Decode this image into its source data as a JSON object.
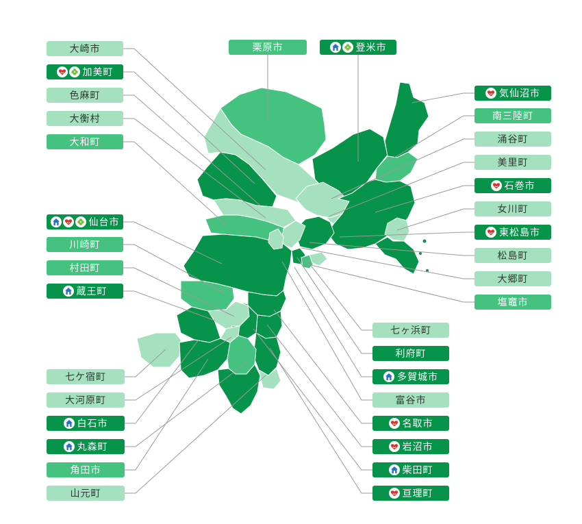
{
  "colors": {
    "light": "#a6e1bf",
    "medium": "#45c27f",
    "dark": "#08934b",
    "leader_line": "#9a9a9a",
    "icon_house": "#2a6fc9",
    "icon_heart": "#d9352b",
    "icon_clover": "#7cc142"
  },
  "municipalities": [
    {
      "id": "osaki",
      "label": "大崎市",
      "tone": "t1",
      "icons": []
    },
    {
      "id": "kami",
      "label": "加美町",
      "tone": "t3",
      "icons": [
        "heart-icon",
        "clover-icon"
      ]
    },
    {
      "id": "shikama",
      "label": "色麻町",
      "tone": "t1",
      "icons": []
    },
    {
      "id": "taihira",
      "label": "大衡村",
      "tone": "t1",
      "icons": []
    },
    {
      "id": "taiwa",
      "label": "大和町",
      "tone": "t2",
      "icons": []
    },
    {
      "id": "kurihara",
      "label": "栗原市",
      "tone": "t2",
      "icons": []
    },
    {
      "id": "tome",
      "label": "登米市",
      "tone": "t3",
      "icons": [
        "house-icon",
        "clover-icon"
      ]
    },
    {
      "id": "kesennuma",
      "label": "気仙沼市",
      "tone": "t3",
      "icons": [
        "heart-icon"
      ]
    },
    {
      "id": "minamisanriku",
      "label": "南三陸町",
      "tone": "t2",
      "icons": []
    },
    {
      "id": "wakuya",
      "label": "涌谷町",
      "tone": "t1",
      "icons": []
    },
    {
      "id": "misato",
      "label": "美里町",
      "tone": "t1",
      "icons": []
    },
    {
      "id": "ishinomaki",
      "label": "石巻市",
      "tone": "t3",
      "icons": [
        "heart-icon"
      ]
    },
    {
      "id": "onagawa",
      "label": "女川町",
      "tone": "t1",
      "icons": []
    },
    {
      "id": "higashimatsushima",
      "label": "東松島市",
      "tone": "t3",
      "icons": [
        "heart-icon"
      ]
    },
    {
      "id": "matsushima",
      "label": "松島町",
      "tone": "t1",
      "icons": []
    },
    {
      "id": "osato",
      "label": "大郷町",
      "tone": "t1",
      "icons": []
    },
    {
      "id": "shiogama",
      "label": "塩竈市",
      "tone": "t2",
      "icons": []
    },
    {
      "id": "sendai",
      "label": "仙台市",
      "tone": "t3",
      "icons": [
        "house-icon",
        "heart-icon",
        "clover-icon"
      ]
    },
    {
      "id": "kawasaki",
      "label": "川崎町",
      "tone": "t2",
      "icons": []
    },
    {
      "id": "murata",
      "label": "村田町",
      "tone": "t2",
      "icons": []
    },
    {
      "id": "zao",
      "label": "蔵王町",
      "tone": "t3",
      "icons": [
        "house-icon"
      ]
    },
    {
      "id": "shichikashuku",
      "label": "七ケ宿町",
      "tone": "t1",
      "icons": []
    },
    {
      "id": "ogawara",
      "label": "大河原町",
      "tone": "t1",
      "icons": []
    },
    {
      "id": "shiroishi",
      "label": "白石市",
      "tone": "t3",
      "icons": [
        "house-icon"
      ]
    },
    {
      "id": "marumori",
      "label": "丸森町",
      "tone": "t3",
      "icons": [
        "house-icon"
      ]
    },
    {
      "id": "kakuda",
      "label": "角田市",
      "tone": "t2",
      "icons": []
    },
    {
      "id": "yamamoto",
      "label": "山元町",
      "tone": "t1",
      "icons": []
    },
    {
      "id": "shichigahama",
      "label": "七ヶ浜町",
      "tone": "t1",
      "icons": []
    },
    {
      "id": "rifu",
      "label": "利府町",
      "tone": "t3",
      "icons": []
    },
    {
      "id": "tagajo",
      "label": "多賀城市",
      "tone": "t3",
      "icons": [
        "house-icon"
      ]
    },
    {
      "id": "tomiya",
      "label": "富谷市",
      "tone": "t1",
      "icons": []
    },
    {
      "id": "natori",
      "label": "名取市",
      "tone": "t3",
      "icons": [
        "heart-icon"
      ]
    },
    {
      "id": "iwanuma",
      "label": "岩沼市",
      "tone": "t3",
      "icons": [
        "heart-icon"
      ]
    },
    {
      "id": "shibata",
      "label": "柴田町",
      "tone": "t3",
      "icons": [
        "house-icon"
      ]
    },
    {
      "id": "watari",
      "label": "亘理町",
      "tone": "t3",
      "icons": [
        "heart-icon"
      ]
    }
  ]
}
